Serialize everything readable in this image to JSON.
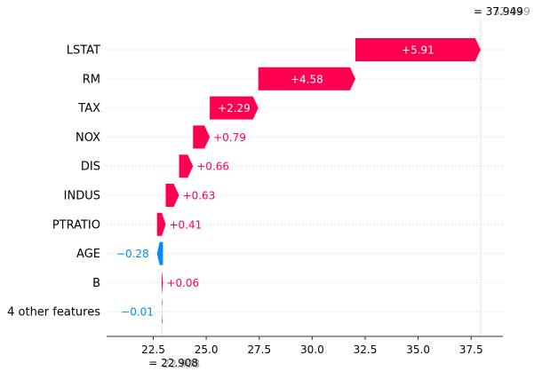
{
  "chart_data": {
    "type": "waterfall",
    "title": "",
    "xlabel": "",
    "ylabel": "",
    "xlim": [
      20.3,
      39.0
    ],
    "x_ticks": [
      22.5,
      25.0,
      27.5,
      30.0,
      32.5,
      35.0,
      37.5
    ],
    "x_tick_labels": [
      "22.5",
      "25.0",
      "27.5",
      "30.0",
      "32.5",
      "35.0",
      "37.5"
    ],
    "base_value": 22.908,
    "base_label_prefix": "= ",
    "base_label": "22.908",
    "final_value": 37.949,
    "final_label_prefix": "= ",
    "final_label": "37.949",
    "features": [
      {
        "name": "LSTAT",
        "value": 5.91,
        "label": "+5.91"
      },
      {
        "name": "RM",
        "value": 4.58,
        "label": "+4.58"
      },
      {
        "name": "TAX",
        "value": 2.29,
        "label": "+2.29"
      },
      {
        "name": "NOX",
        "value": 0.79,
        "label": "+0.79"
      },
      {
        "name": "DIS",
        "value": 0.66,
        "label": "+0.66"
      },
      {
        "name": "INDUS",
        "value": 0.63,
        "label": "+0.63"
      },
      {
        "name": "PTRATIO",
        "value": 0.41,
        "label": "+0.41"
      },
      {
        "name": "AGE",
        "value": -0.28,
        "label": "−0.28"
      },
      {
        "name": "B",
        "value": 0.06,
        "label": "+0.06"
      },
      {
        "name": "4 other features",
        "value": -0.01,
        "label": "−0.01"
      }
    ],
    "colors": {
      "positive": "#ff0051",
      "negative": "#008bfb",
      "label_on_bar": "#ffffff",
      "tick_text": "#000000",
      "ghost_text": "#999999",
      "gridline": "#e6e6e6",
      "axis": "#333333",
      "guide": "#bbbbbb"
    }
  }
}
